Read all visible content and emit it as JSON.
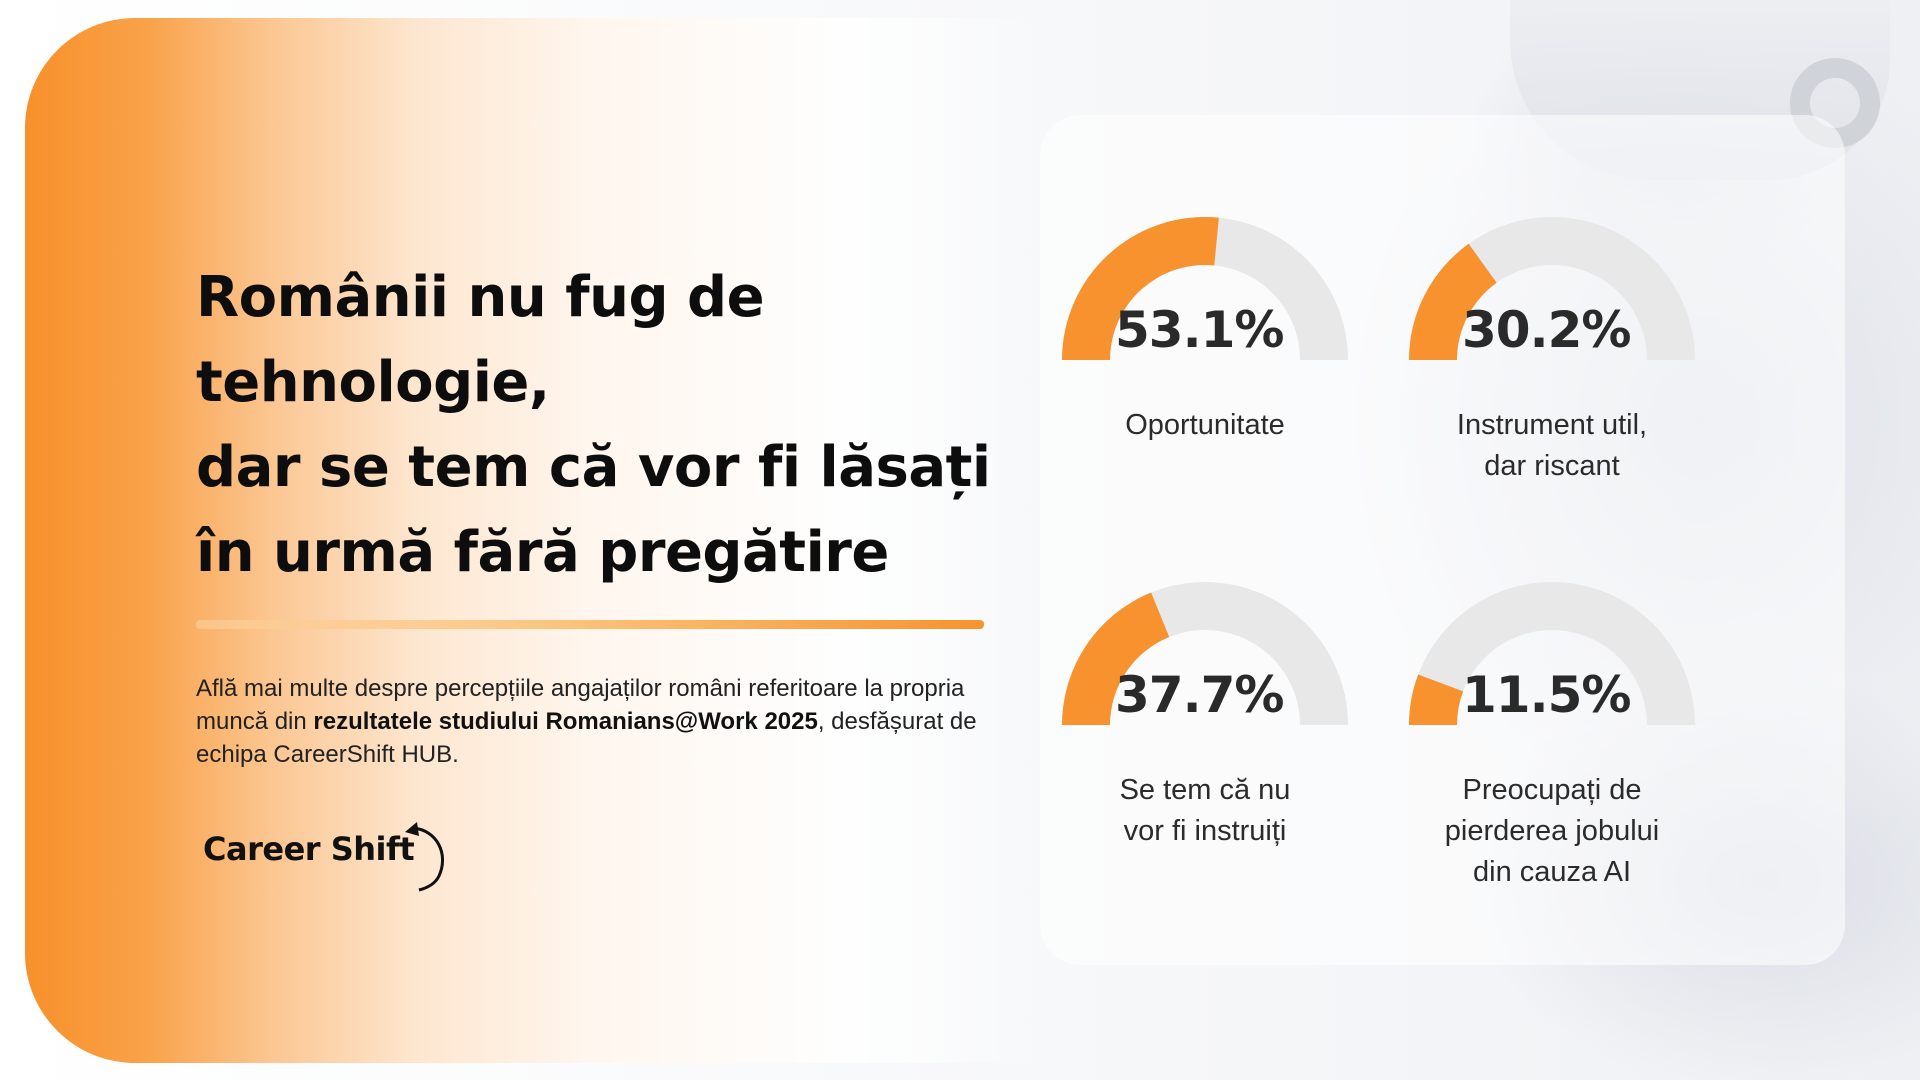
{
  "headline": {
    "lines": [
      "Românii nu fug de",
      "tehnologie,",
      "dar se tem că vor fi lăsați",
      "în urmă fără pregătire"
    ]
  },
  "body": {
    "part1": "Află mai multe despre percepțiile angajaților români referitoare la propria muncă din ",
    "bold": "rezultatele studiului Romanians@Work 2025",
    "part2": ", desfășurat de echipa CareerShift HUB."
  },
  "logo": {
    "text": "Career Shift"
  },
  "colors": {
    "accent": "#f7922e",
    "track": "#e8e8e8",
    "text": "#2a2a2a"
  },
  "chart_data": {
    "type": "gauge",
    "title": "",
    "series": [
      {
        "value": 53.1,
        "value_label": "53.1%",
        "label_lines": [
          "Oportunitate"
        ]
      },
      {
        "value": 30.2,
        "value_label": "30.2%",
        "label_lines": [
          "Instrument util,",
          "dar riscant"
        ]
      },
      {
        "value": 37.7,
        "value_label": "37.7%",
        "label_lines": [
          "Se tem că nu",
          "vor fi instruiți"
        ]
      },
      {
        "value": 11.5,
        "value_label": "11.5%",
        "label_lines": [
          "Preocupați de",
          "pierderea jobului",
          "din cauza AI"
        ]
      }
    ],
    "range": [
      0,
      100
    ]
  }
}
